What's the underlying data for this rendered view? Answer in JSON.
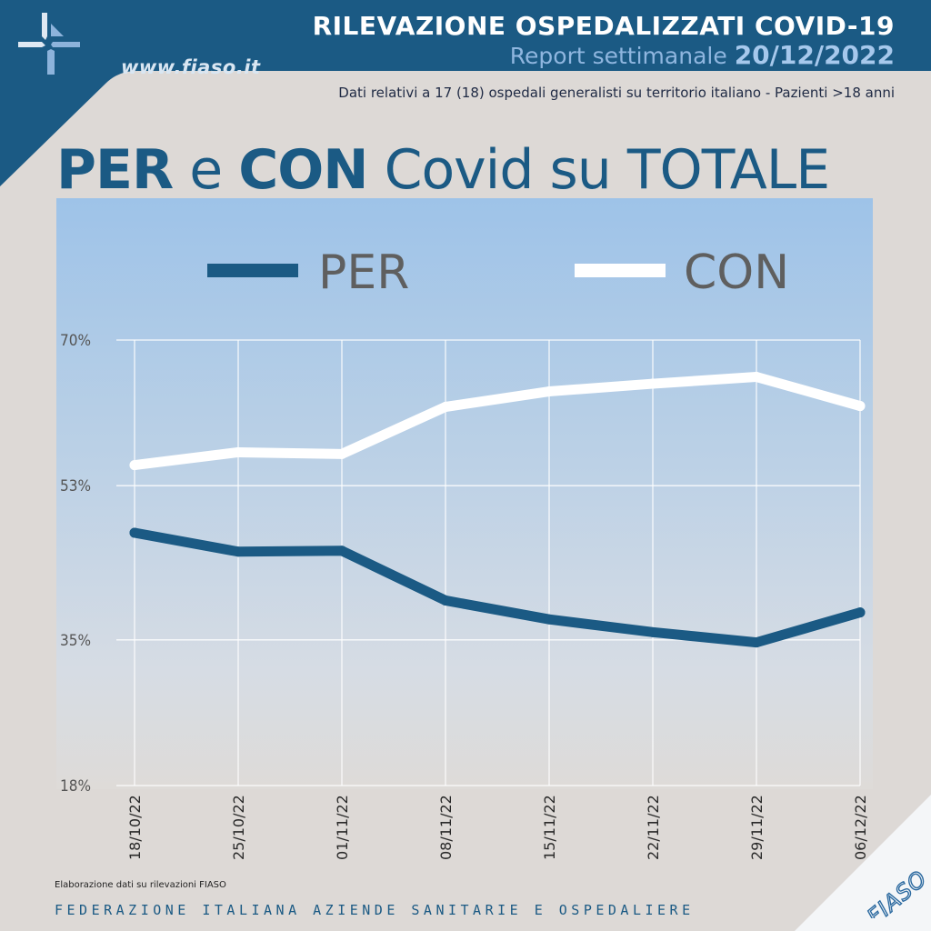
{
  "header": {
    "title": "RILEVAZIONE OSPEDALIZZATI COVID-19",
    "subtitle_prefix": "Report settimanale",
    "subtitle_date": "20/12/2022",
    "note": "Dati relativi a 17 (18) ospedali generalisti su territorio italiano - Pazienti >18 anni",
    "site": "www.fiaso.it"
  },
  "main_title": {
    "part1": "PER",
    "part2": " e ",
    "part3": "CON",
    "part4": " Covid su TOTALE"
  },
  "colors": {
    "brand_dark": "#1b5a84",
    "per_line": "#1b5a84",
    "con_line": "#ffffff",
    "legend_text": "#5f5f5f",
    "background": "#ddd9d6"
  },
  "chart_data": {
    "type": "line",
    "categories": [
      "18/10/22",
      "25/10/22",
      "01/11/22",
      "08/11/22",
      "15/11/22",
      "22/11/22",
      "29/11/22",
      "06/12/22"
    ],
    "series": [
      {
        "name": "PER",
        "values": [
          47.5,
          45.3,
          45.4,
          39.6,
          37.4,
          35.9,
          34.7,
          38.2
        ]
      },
      {
        "name": "CON",
        "values": [
          55.4,
          56.9,
          56.7,
          62.2,
          64.0,
          64.9,
          65.7,
          62.3
        ]
      }
    ],
    "y_ticks": [
      "70%",
      "53%",
      "35%",
      "18%"
    ],
    "ylim": [
      18,
      70
    ],
    "grid": true,
    "legend": "top-center"
  },
  "footer": {
    "note": "Elaborazione dati su rilevazioni FIASO",
    "org": "FEDERAZIONE ITALIANA AZIENDE SANITARIE E OSPEDALIERE",
    "mark": "FIASO"
  }
}
